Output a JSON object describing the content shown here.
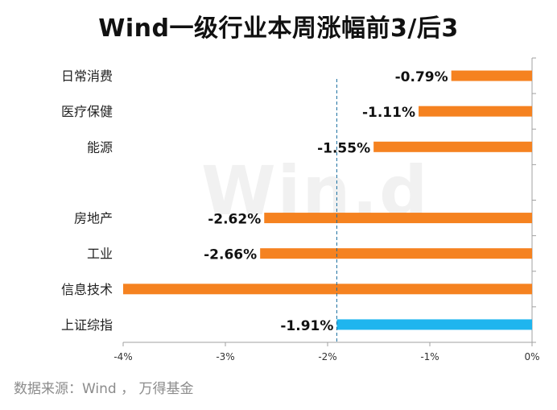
{
  "chart_data": {
    "type": "bar",
    "orientation": "horizontal",
    "title": "Wind一级行业本周涨幅前3/后3",
    "categories": [
      "日常消费",
      "医疗保健",
      "能源",
      "",
      "房地产",
      "工业",
      "信息技术",
      "上证综指"
    ],
    "values": [
      -0.79,
      -1.11,
      -1.55,
      null,
      -2.62,
      -2.66,
      -4.0,
      -1.91
    ],
    "data_labels": [
      "-0.79%",
      "-1.11%",
      "-1.55%",
      "",
      "-2.62%",
      "-2.66%",
      "",
      "-1.91%"
    ],
    "bar_colors": [
      "#f58220",
      "#f58220",
      "#f58220",
      "#f58220",
      "#f58220",
      "#f58220",
      "#f58220",
      "#1fb5ee"
    ],
    "xlim": [
      -4,
      0
    ],
    "xticks": [
      -4,
      -3,
      -2,
      -1,
      0
    ],
    "xtick_labels": [
      "-4%",
      "-3%",
      "-2%",
      "-1%",
      "0%"
    ],
    "reference_line": {
      "value": -1.91,
      "style": "dashed",
      "color": "#1a6fa0"
    },
    "axis_position": "right",
    "grid": false,
    "legend": "none"
  },
  "source_text": "数据来源：Wind ， 万得基金",
  "watermark_text": "Win.d"
}
